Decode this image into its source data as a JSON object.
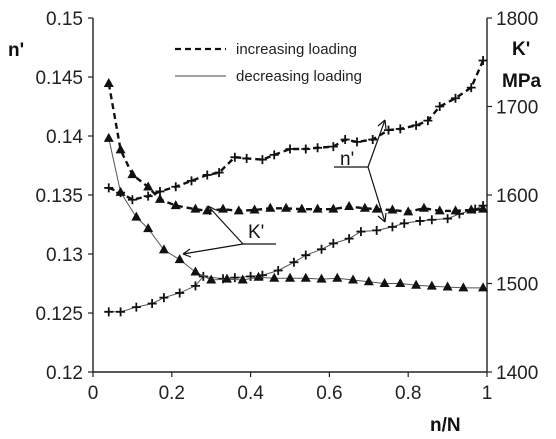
{
  "chart_data": {
    "type": "line",
    "xlabel": "n/N",
    "y_left_label": "n'",
    "y_right_label": [
      "K'",
      "MPa"
    ],
    "x_ticks": [
      "0",
      "0.2",
      "0.4",
      "0.6",
      "0.8",
      "1"
    ],
    "y_left_ticks": [
      "0.12",
      "0.125",
      "0.13",
      "0.135",
      "0.14",
      "0.145",
      "0.15"
    ],
    "y_right_ticks": [
      "1400",
      "1500",
      "1600",
      "1700",
      "1800"
    ],
    "xlim": [
      0,
      1
    ],
    "ylim_left": [
      0.12,
      0.15
    ],
    "ylim_right": [
      1400,
      1800
    ],
    "legend": {
      "placement": "top-center",
      "entries": [
        {
          "label": "increasing loading",
          "style": "dashed"
        },
        {
          "label": "decreasing loading",
          "style": "solid"
        }
      ]
    },
    "annotations": [
      {
        "text": "n'"
      },
      {
        "text": "K'"
      }
    ],
    "series": [
      {
        "quantity": "n'",
        "loading": "increasing",
        "axis": "left",
        "marker": "plus",
        "style": "dashed",
        "x": [
          0.04,
          0.07,
          0.1,
          0.14,
          0.17,
          0.21,
          0.25,
          0.29,
          0.32,
          0.36,
          0.39,
          0.43,
          0.46,
          0.5,
          0.54,
          0.57,
          0.61,
          0.64,
          0.67,
          0.71,
          0.75,
          0.78,
          0.82,
          0.85,
          0.88,
          0.92,
          0.96,
          0.99
        ],
        "y": [
          0.1356,
          0.1352,
          0.1346,
          0.1349,
          0.1353,
          0.1357,
          0.1362,
          0.1367,
          0.1369,
          0.1382,
          0.1381,
          0.138,
          0.1384,
          0.1389,
          0.1389,
          0.139,
          0.1391,
          0.1397,
          0.1395,
          0.1397,
          0.1405,
          0.1406,
          0.1409,
          0.1413,
          0.1425,
          0.1432,
          0.1441,
          0.1464
        ]
      },
      {
        "quantity": "n'",
        "loading": "decreasing",
        "axis": "left",
        "marker": "plus",
        "style": "solid",
        "x": [
          0.04,
          0.07,
          0.11,
          0.15,
          0.18,
          0.22,
          0.26,
          0.28,
          0.33,
          0.36,
          0.4,
          0.43,
          0.47,
          0.51,
          0.54,
          0.58,
          0.61,
          0.65,
          0.68,
          0.72,
          0.76,
          0.79,
          0.83,
          0.86,
          0.9,
          0.93,
          0.97,
          0.99
        ],
        "y": [
          0.1251,
          0.1251,
          0.1255,
          0.1258,
          0.1263,
          0.1267,
          0.1273,
          0.1281,
          0.1279,
          0.128,
          0.1281,
          0.1282,
          0.1286,
          0.1293,
          0.1299,
          0.1304,
          0.1309,
          0.1313,
          0.1319,
          0.132,
          0.1323,
          0.1326,
          0.1328,
          0.1329,
          0.133,
          0.1334,
          0.1338,
          0.1341
        ]
      },
      {
        "quantity": "K'",
        "loading": "increasing",
        "axis": "right",
        "marker": "triangle",
        "style": "dashed",
        "x": [
          0.04,
          0.07,
          0.1,
          0.14,
          0.17,
          0.21,
          0.26,
          0.29,
          0.33,
          0.37,
          0.41,
          0.45,
          0.49,
          0.53,
          0.57,
          0.61,
          0.65,
          0.69,
          0.72,
          0.76,
          0.8,
          0.84,
          0.88,
          0.92,
          0.96,
          0.99
        ],
        "y": [
          1726,
          1651,
          1623,
          1609,
          1595,
          1588,
          1584,
          1582,
          1584,
          1582,
          1583,
          1585,
          1585,
          1584,
          1584,
          1584,
          1587,
          1585,
          1584,
          1583,
          1581,
          1585,
          1582,
          1582,
          1583,
          1584
        ]
      },
      {
        "quantity": "K'",
        "loading": "decreasing",
        "axis": "right",
        "marker": "triangle",
        "style": "solid",
        "x": [
          0.04,
          0.07,
          0.11,
          0.14,
          0.18,
          0.22,
          0.26,
          0.3,
          0.34,
          0.38,
          0.42,
          0.46,
          0.5,
          0.54,
          0.58,
          0.62,
          0.66,
          0.7,
          0.74,
          0.78,
          0.82,
          0.86,
          0.9,
          0.94,
          0.99
        ],
        "y": [
          1664,
          1603,
          1575,
          1562,
          1538,
          1527,
          1513,
          1504,
          1505,
          1504,
          1507,
          1506,
          1506,
          1506,
          1505,
          1506,
          1504,
          1502,
          1500,
          1500,
          1498,
          1497,
          1496,
          1495,
          1495
        ]
      }
    ]
  }
}
